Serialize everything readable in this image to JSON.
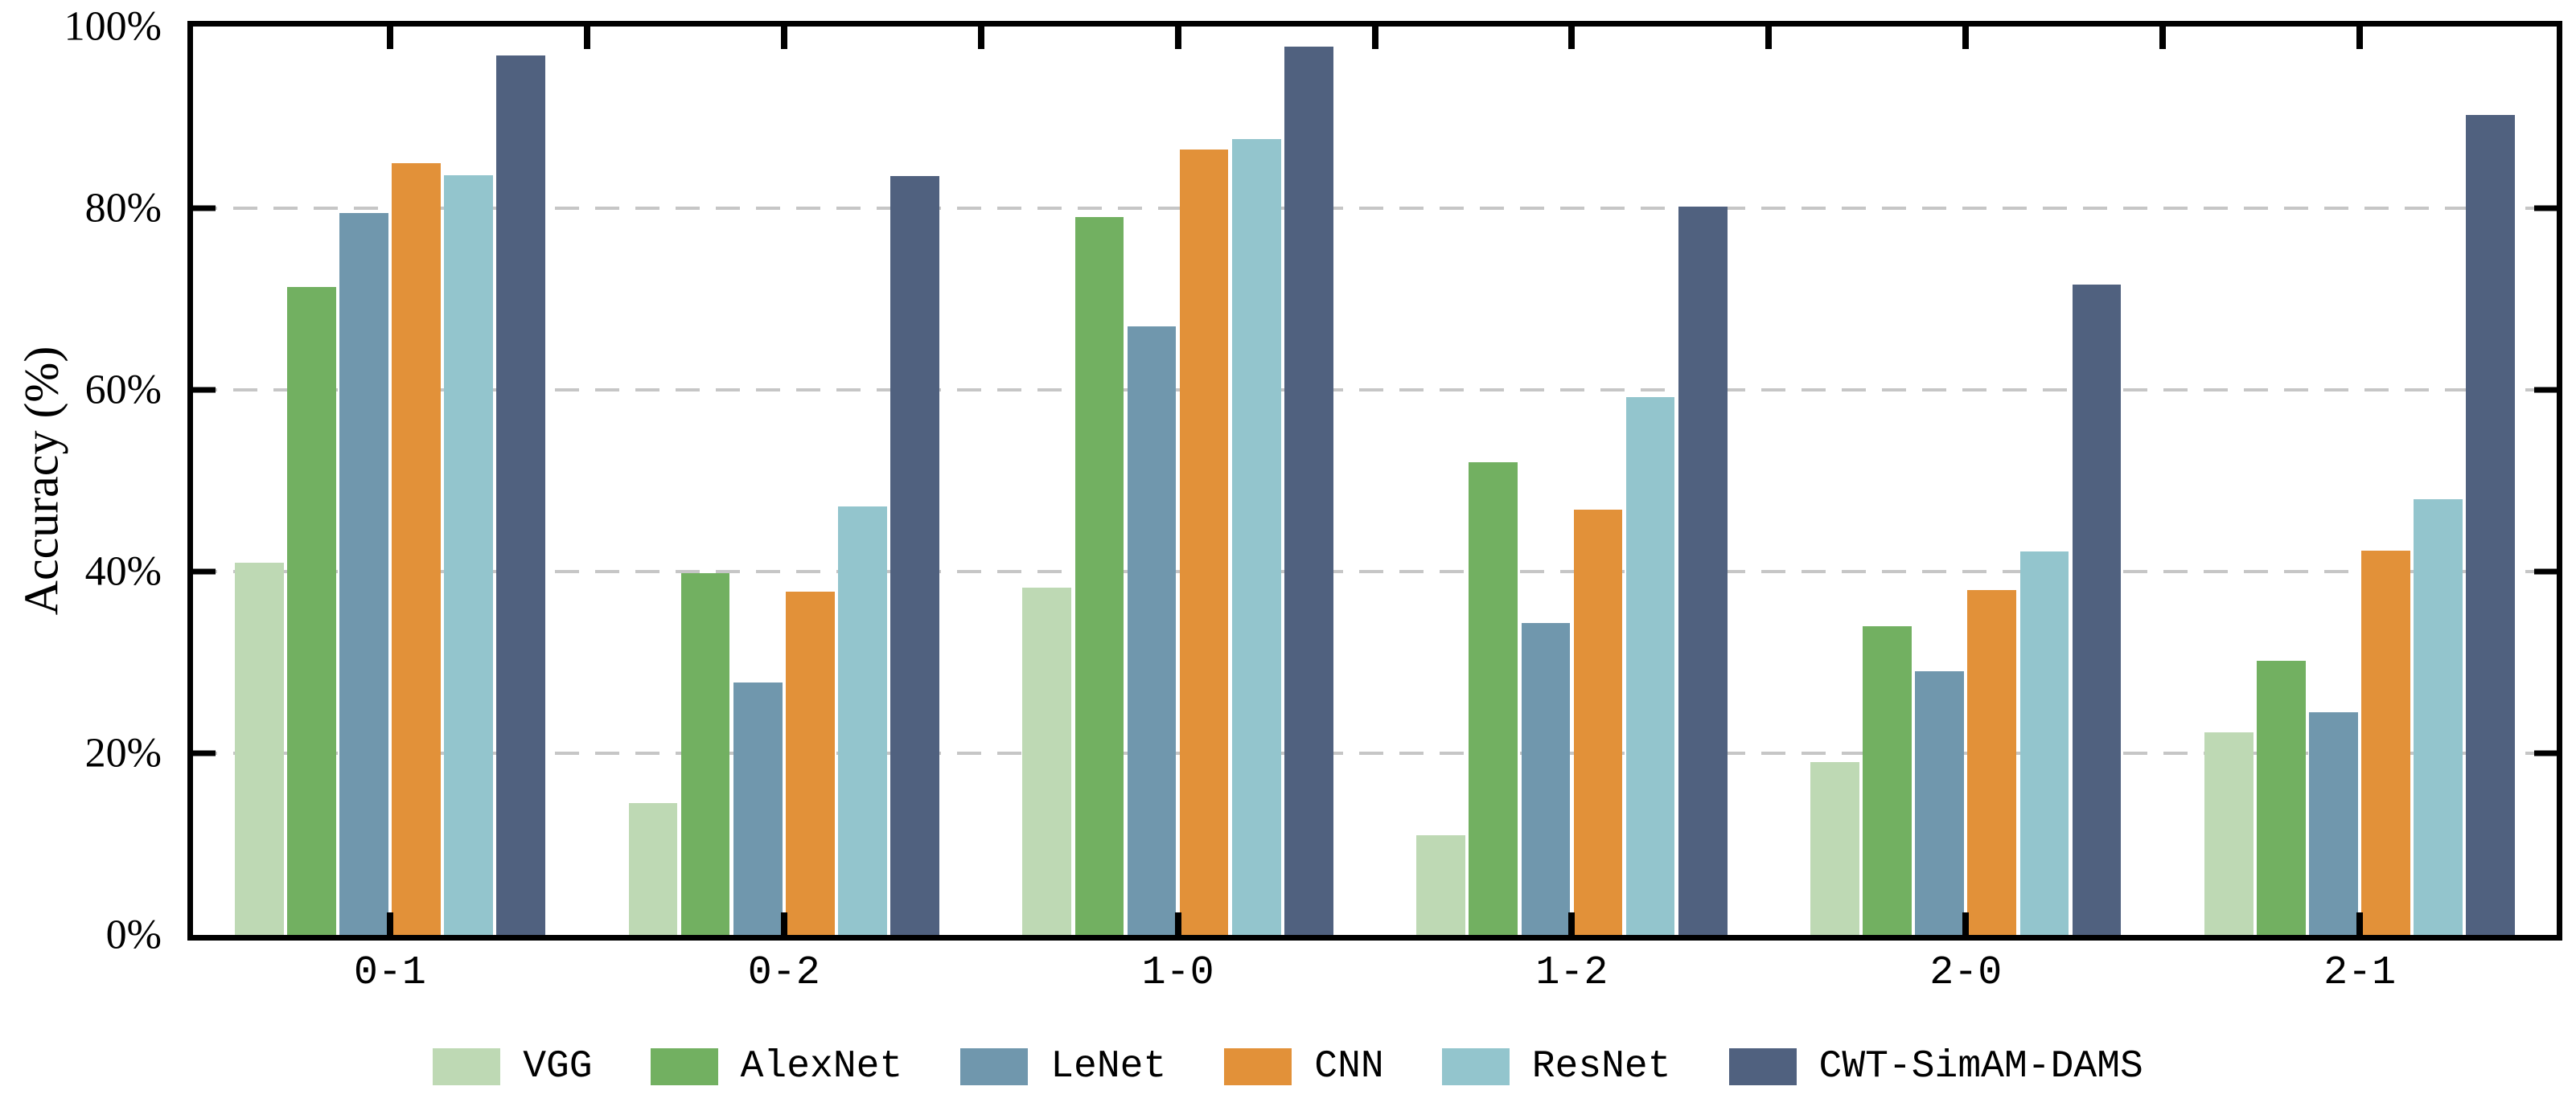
{
  "figure": {
    "background": "#ffffff",
    "text_color": "#000000"
  },
  "axes": {
    "y_title": "Accuracy (%)",
    "y_tick_labels": [
      "0%",
      "20%",
      "40%",
      "60%",
      "80%",
      "100%"
    ],
    "y_tick_values": [
      0,
      20,
      40,
      60,
      80,
      100
    ],
    "x_tick_labels": [
      "0-1",
      "0-2",
      "1-0",
      "1-2",
      "2-0",
      "2-1"
    ]
  },
  "chart_data": {
    "type": "bar",
    "title": "",
    "xlabel": "",
    "ylabel": "Accuracy (%)",
    "ylim": [
      0,
      100
    ],
    "grid": {
      "axis": "y",
      "style": "dashed",
      "color": "#c6c6c6",
      "positions": [
        20,
        40,
        60,
        80
      ]
    },
    "legend_position": "bottom",
    "categories": [
      "0-1",
      "0-2",
      "1-0",
      "1-2",
      "2-0",
      "2-1"
    ],
    "series": [
      {
        "name": "VGG",
        "color": "#bed9b4",
        "values": [
          41.0,
          14.5,
          38.2,
          11.0,
          19.0,
          22.3
        ]
      },
      {
        "name": "AlexNet",
        "color": "#72b061",
        "values": [
          71.3,
          39.8,
          79.0,
          52.0,
          34.0,
          30.2
        ]
      },
      {
        "name": "LeNet",
        "color": "#7097ad",
        "values": [
          79.5,
          27.8,
          67.0,
          34.3,
          29.0,
          24.5
        ]
      },
      {
        "name": "CNN",
        "color": "#e29139",
        "values": [
          85.0,
          37.8,
          86.5,
          46.8,
          38.0,
          42.3
        ]
      },
      {
        "name": "ResNet",
        "color": "#93c5cd",
        "values": [
          83.6,
          47.2,
          87.6,
          59.2,
          42.2,
          48.0
        ]
      },
      {
        "name": "CWT-SimAM-DAMS",
        "color": "#50617f",
        "values": [
          96.8,
          83.5,
          97.8,
          80.2,
          71.6,
          90.3
        ]
      }
    ]
  }
}
